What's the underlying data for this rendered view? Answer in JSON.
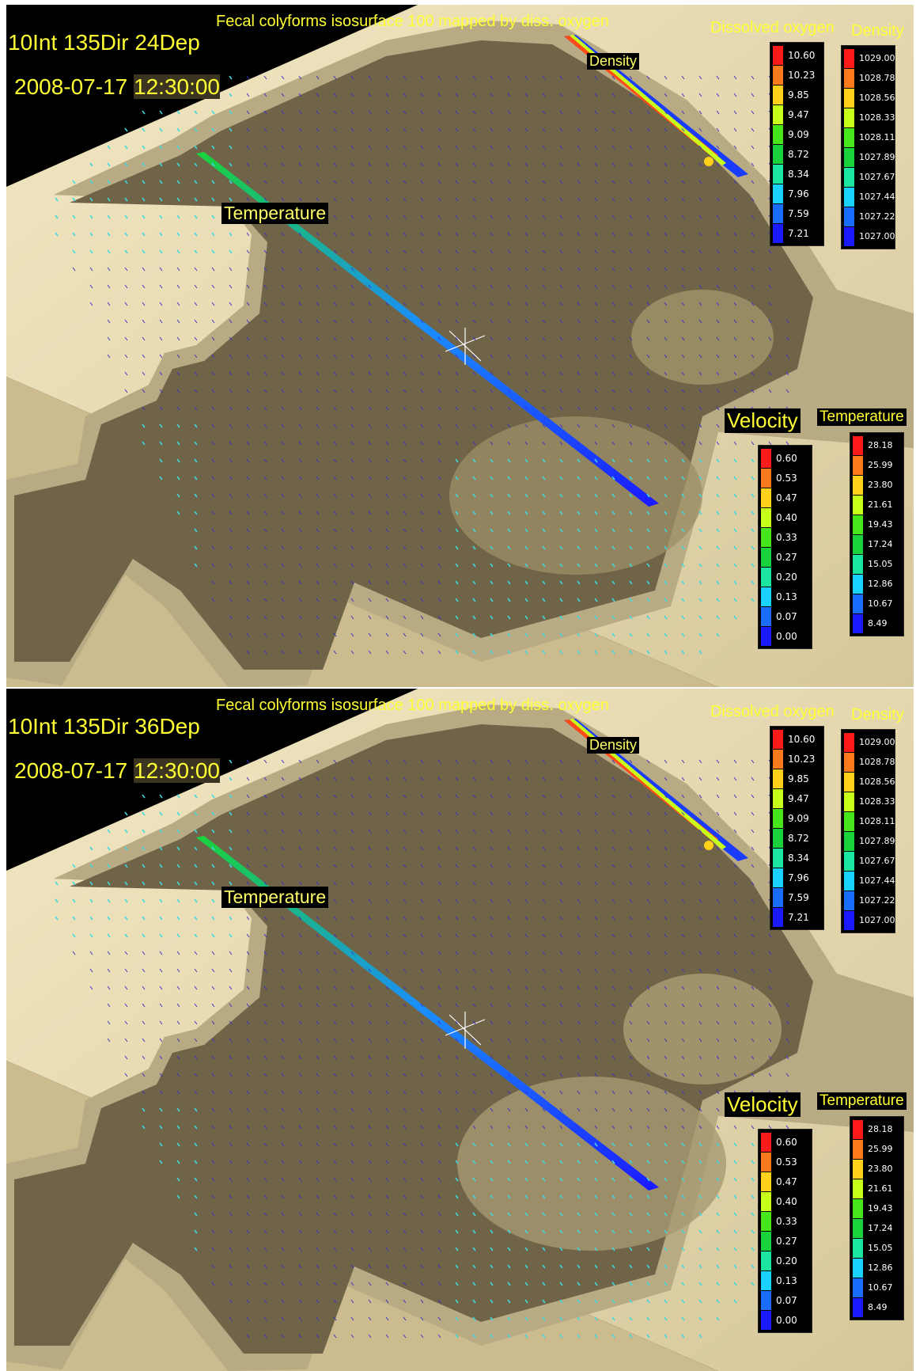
{
  "colors": {
    "legend_scale": [
      "#ff1a1a",
      "#ff7a1a",
      "#ffd11a",
      "#c8ff1a",
      "#46e61a",
      "#1ad23c",
      "#1ae6a0",
      "#1ad2ff",
      "#1a6eff",
      "#1a1aff"
    ],
    "label_text": "#ffff33",
    "terrain": "#6f6448",
    "walls": "#b6aa85",
    "floor": "#e9dcb4"
  },
  "panels": [
    {
      "title": "Fecal colyforms isosurface 100 mapped by diss. oxygen",
      "scenario": "10Int 135Dir 24Dep",
      "datetime_date": "2008-07-17 ",
      "datetime_time": "12:30:00",
      "plane_labels": {
        "temperature": "Temperature",
        "density": "Density"
      },
      "legends": {
        "dissolved_oxygen": {
          "title": "Dissolved oxygen",
          "values": [
            "10.60",
            "10.23",
            "9.85",
            "9.47",
            "9.09",
            "8.72",
            "8.34",
            "7.96",
            "7.59",
            "7.21"
          ]
        },
        "density": {
          "title": "Density",
          "values": [
            "1029.00",
            "1028.78",
            "1028.56",
            "1028.33",
            "1028.11",
            "1027.89",
            "1027.67",
            "1027.44",
            "1027.22",
            "1027.00"
          ]
        },
        "velocity": {
          "title": "Velocity",
          "values": [
            "0.60",
            "0.53",
            "0.47",
            "0.40",
            "0.33",
            "0.27",
            "0.20",
            "0.13",
            "0.07",
            "0.00"
          ]
        },
        "temperature": {
          "title": "Temperature",
          "values": [
            "28.18",
            "25.99",
            "23.80",
            "21.61",
            "19.43",
            "17.24",
            "15.05",
            "12.86",
            "10.67",
            "8.49"
          ]
        }
      }
    },
    {
      "title": "Fecal colyforms isosurface 100 mapped by diss. oxygen",
      "scenario": "10Int 135Dir 36Dep",
      "datetime_date": "2008-07-17 ",
      "datetime_time": "12:30:00",
      "plane_labels": {
        "temperature": "Temperature",
        "density": "Density"
      },
      "legends": {
        "dissolved_oxygen": {
          "title": "Dissolved oxygen",
          "values": [
            "10.60",
            "10.23",
            "9.85",
            "9.47",
            "9.09",
            "8.72",
            "8.34",
            "7.96",
            "7.59",
            "7.21"
          ]
        },
        "density": {
          "title": "Density",
          "values": [
            "1029.00",
            "1028.78",
            "1028.56",
            "1028.33",
            "1028.11",
            "1027.89",
            "1027.67",
            "1027.44",
            "1027.22",
            "1027.00"
          ]
        },
        "velocity": {
          "title": "Velocity",
          "values": [
            "0.60",
            "0.53",
            "0.47",
            "0.40",
            "0.33",
            "0.27",
            "0.20",
            "0.13",
            "0.07",
            "0.00"
          ]
        },
        "temperature": {
          "title": "Temperature",
          "values": [
            "28.18",
            "25.99",
            "23.80",
            "21.61",
            "19.43",
            "17.24",
            "15.05",
            "12.86",
            "10.67",
            "8.49"
          ]
        }
      }
    }
  ]
}
